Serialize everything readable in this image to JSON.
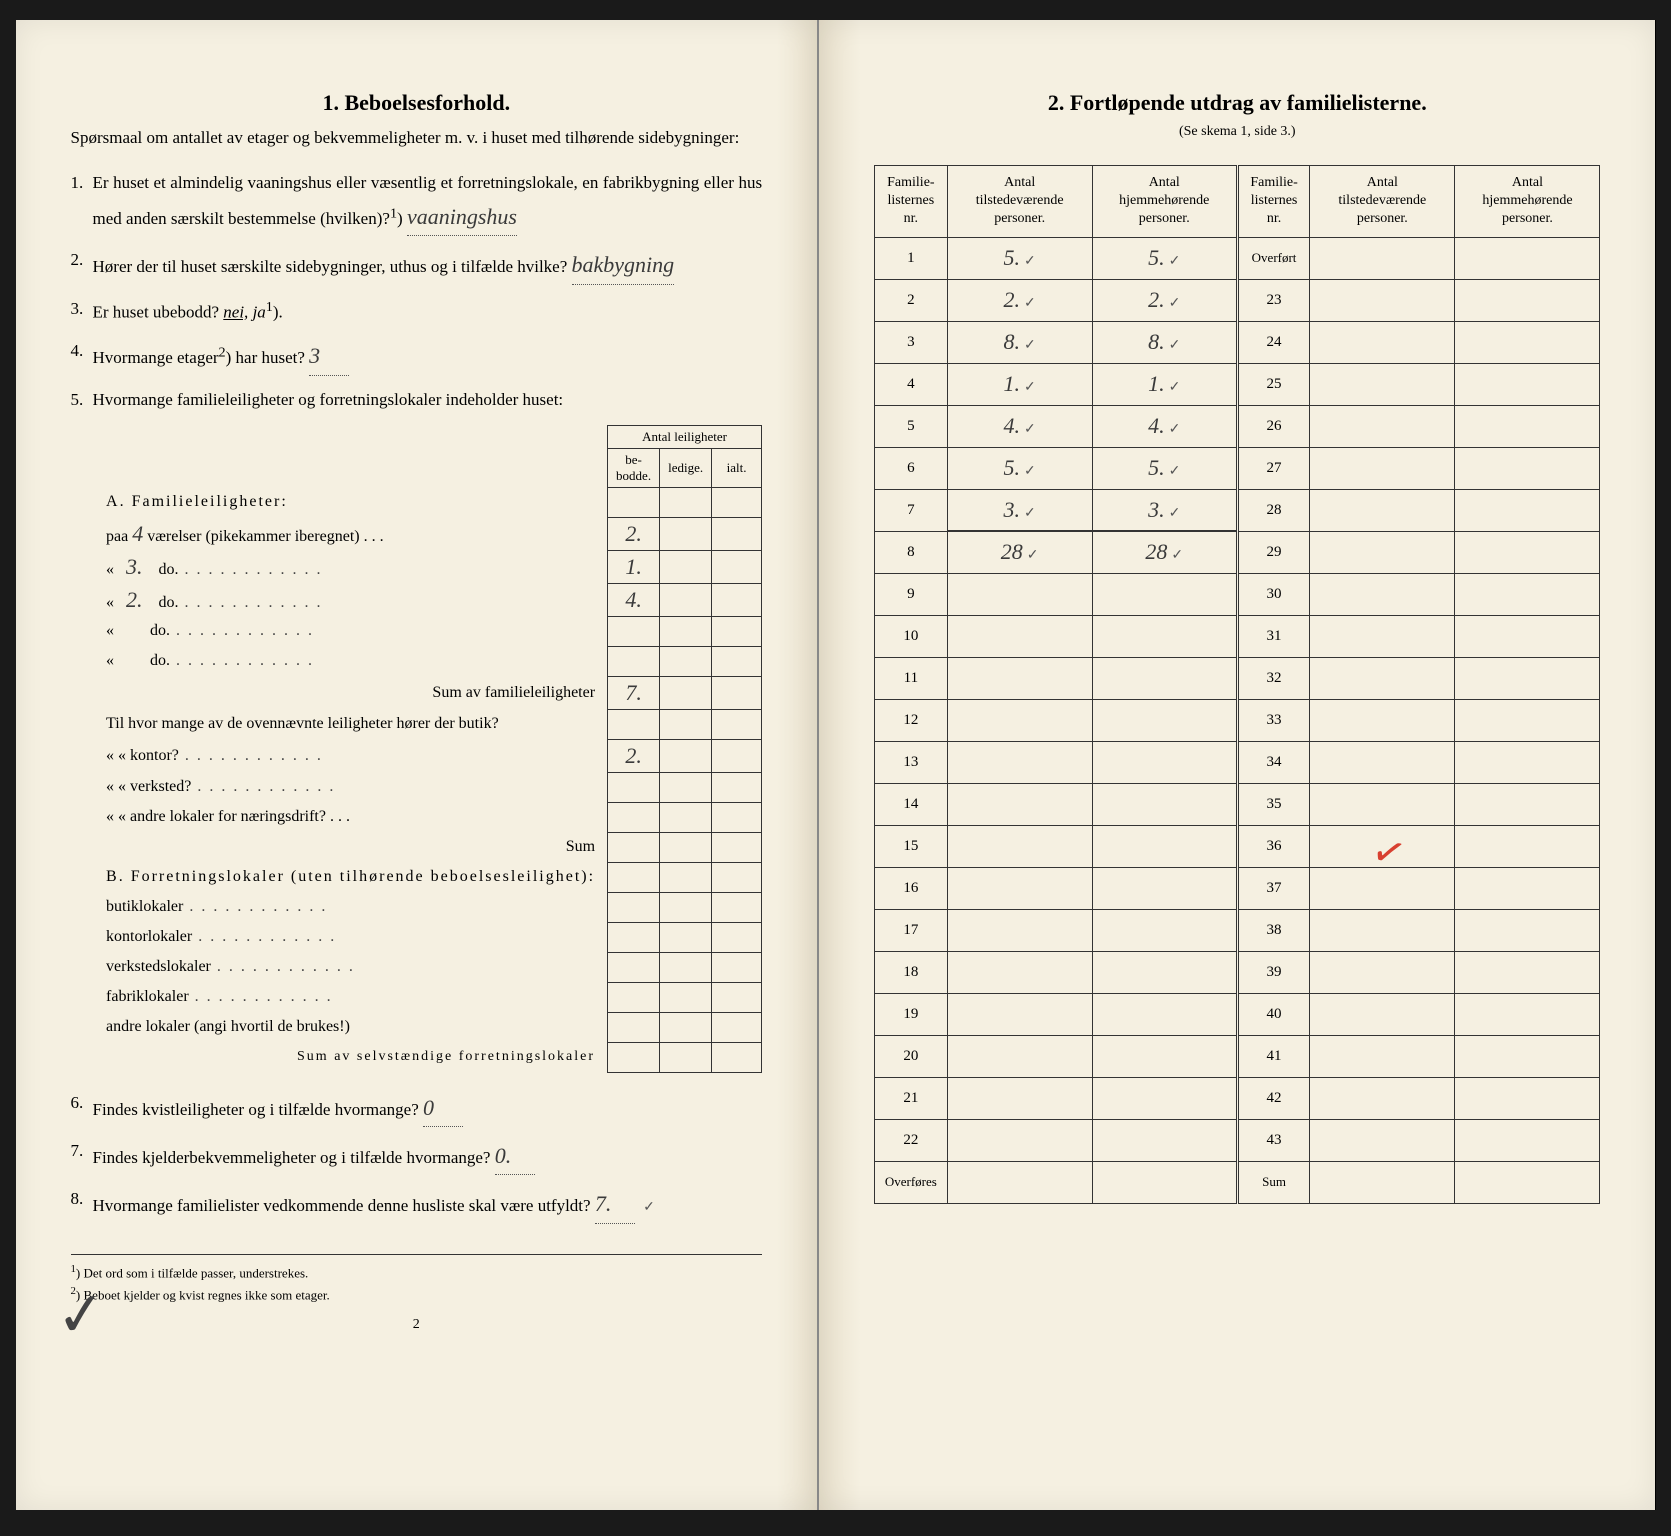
{
  "left": {
    "title": "1.   Beboelsesforhold.",
    "intro": "Spørsmaal om antallet av etager og bekvemmeligheter m. v. i huset med tilhørende sidebygninger:",
    "q1_a": "Er huset et almindelig vaaningshus eller væsentlig et forretningslokale, en fabrikbygning eller hus med anden særskilt bestemmelse (hvilken)?",
    "q1_sup": "1",
    "q1_ans": "vaaningshus",
    "q2_a": "Hører der til huset særskilte sidebygninger, uthus og i tilfælde hvilke?",
    "q2_ans": "bakbygning",
    "q3_a": "Er huset ubebodd?",
    "q3_nei": "nei,",
    "q3_ja": "ja",
    "q3_sup": "1",
    "q4_a": "Hvormange etager",
    "q4_sup": "2",
    "q4_b": ") har huset?",
    "q4_ans": "3",
    "q5": "Hvormange familieleiligheter og forretningslokaler indeholder huset:",
    "table_hdr_top": "Antal leiligheter",
    "table_hdr_bebodde": "be-\nbodde.",
    "table_hdr_ledige": "ledige.",
    "table_hdr_ialt": "ialt.",
    "secA": "A. Familieleiligheter:",
    "rowA1_pre": "paa",
    "rowA1_val": "4",
    "rowA1_post": "værelser (pikekammer iberegnet)",
    "rowA1_b": "2.",
    "rowA2_pre": "«",
    "rowA2_val": "3.",
    "rowA2_post": "do.",
    "rowA2_b": "1.",
    "rowA3_pre": "«",
    "rowA3_val": "2.",
    "rowA3_post": "do.",
    "rowA3_b": "4.",
    "rowA4_pre": "«",
    "rowA4_post": "do.",
    "rowA5_pre": "«",
    "rowA5_post": "do.",
    "sumA": "Sum av familieleiligheter",
    "sumA_b": "7.",
    "til_intro": "Til hvor mange av de ovennævnte leiligheter hører der butik?",
    "til_kontor": "«       «   kontor?",
    "til_kontor_b": "2.",
    "til_verksted": "«       «   verksted?",
    "til_andre": "«       «   andre lokaler for næringsdrift?",
    "til_sum": "Sum",
    "secB": "B. Forretningslokaler (uten tilhørende beboelsesleilighet):",
    "b1": "butiklokaler",
    "b2": "kontorlokaler",
    "b3": "verkstedslokaler",
    "b4": "fabriklokaler",
    "b5": "andre lokaler (angi hvortil de brukes!)",
    "sumB": "Sum av selvstændige forretningslokaler",
    "q6_a": "Findes kvistleiligheter og i tilfælde hvormange?",
    "q6_ans": "0",
    "q7_a": "Findes kjelderbekvemmeligheter og i tilfælde hvormange?",
    "q7_ans": "0.",
    "q8_a": "Hvormange familielister vedkommende denne husliste skal være utfyldt?",
    "q8_ans": "7.",
    "fn1": "Det ord som i tilfælde passer, understrekes.",
    "fn2": "Beboet kjelder og kvist regnes ikke som etager.",
    "fn1_num": "1",
    "fn2_num": "2",
    "pagenum": "2"
  },
  "right": {
    "title": "2.   Fortløpende utdrag av familielisterne.",
    "subtitle": "(Se skema 1, side 3.)",
    "h1": "Familie-\nlisternes\nnr.",
    "h2": "Antal\ntilstedeværende\npersoner.",
    "h3": "Antal\nhjemmehørende\npersoner.",
    "overfort": "Overført",
    "overfores": "Overføres",
    "sum": "Sum",
    "rows_left": [
      {
        "n": "1",
        "t": "5.",
        "h": "5."
      },
      {
        "n": "2",
        "t": "2.",
        "h": "2."
      },
      {
        "n": "3",
        "t": "8.",
        "h": "8."
      },
      {
        "n": "4",
        "t": "1.",
        "h": "1."
      },
      {
        "n": "5",
        "t": "4.",
        "h": "4."
      },
      {
        "n": "6",
        "t": "5.",
        "h": "5."
      },
      {
        "n": "7",
        "t": "3.",
        "h": "3."
      },
      {
        "n": "8",
        "t": "28",
        "h": "28"
      },
      {
        "n": "9",
        "t": "",
        "h": ""
      },
      {
        "n": "10",
        "t": "",
        "h": ""
      },
      {
        "n": "11",
        "t": "",
        "h": ""
      },
      {
        "n": "12",
        "t": "",
        "h": ""
      },
      {
        "n": "13",
        "t": "",
        "h": ""
      },
      {
        "n": "14",
        "t": "",
        "h": ""
      },
      {
        "n": "15",
        "t": "",
        "h": ""
      },
      {
        "n": "16",
        "t": "",
        "h": ""
      },
      {
        "n": "17",
        "t": "",
        "h": ""
      },
      {
        "n": "18",
        "t": "",
        "h": ""
      },
      {
        "n": "19",
        "t": "",
        "h": ""
      },
      {
        "n": "20",
        "t": "",
        "h": ""
      },
      {
        "n": "21",
        "t": "",
        "h": ""
      },
      {
        "n": "22",
        "t": "",
        "h": ""
      }
    ],
    "rows_right_nums": [
      "23",
      "24",
      "25",
      "26",
      "27",
      "28",
      "29",
      "30",
      "31",
      "32",
      "33",
      "34",
      "35",
      "36",
      "37",
      "38",
      "39",
      "40",
      "41",
      "42",
      "43"
    ]
  },
  "colors": {
    "paper": "#f5f0e1",
    "ink": "#222222",
    "hand": "#3a3a3a",
    "red": "#d84030"
  }
}
